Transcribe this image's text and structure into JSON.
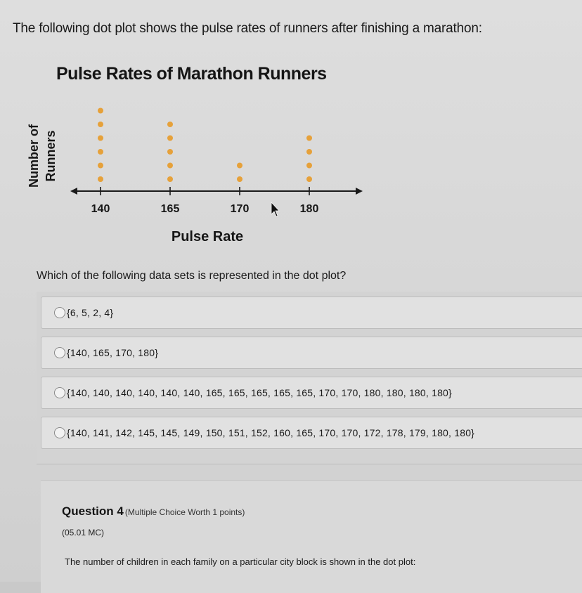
{
  "prompt_text": "The following dot plot shows the pulse rates of runners after finishing a marathon:",
  "chart_data": {
    "type": "scatter",
    "title": "Pulse Rates of Marathon Runners",
    "xlabel": "Pulse Rate",
    "ylabel_line1": "Number of",
    "ylabel_line2": "Runners",
    "categories": [
      "140",
      "165",
      "170",
      "180"
    ],
    "values": [
      6,
      5,
      2,
      4
    ],
    "dot_color": "#e6a13a"
  },
  "question_text": "Which of the following data sets is represented in the dot plot?",
  "options": [
    {
      "label": "{6, 5, 2, 4}"
    },
    {
      "label": "{140, 165, 170, 180}"
    },
    {
      "label": "{140, 140, 140, 140, 140, 140, 165, 165, 165, 165, 165, 170, 170, 180, 180, 180, 180}"
    },
    {
      "label": "{140, 141, 142, 145, 145, 149, 150, 151, 152, 160, 165, 170, 170, 172, 178, 179, 180, 180}"
    }
  ],
  "next_question": {
    "title": "Question 4",
    "meta": "(Multiple Choice Worth 1 points)",
    "code": "(05.01 MC)",
    "text": "The number of children in each family on a particular city block is shown in the dot plot:"
  }
}
